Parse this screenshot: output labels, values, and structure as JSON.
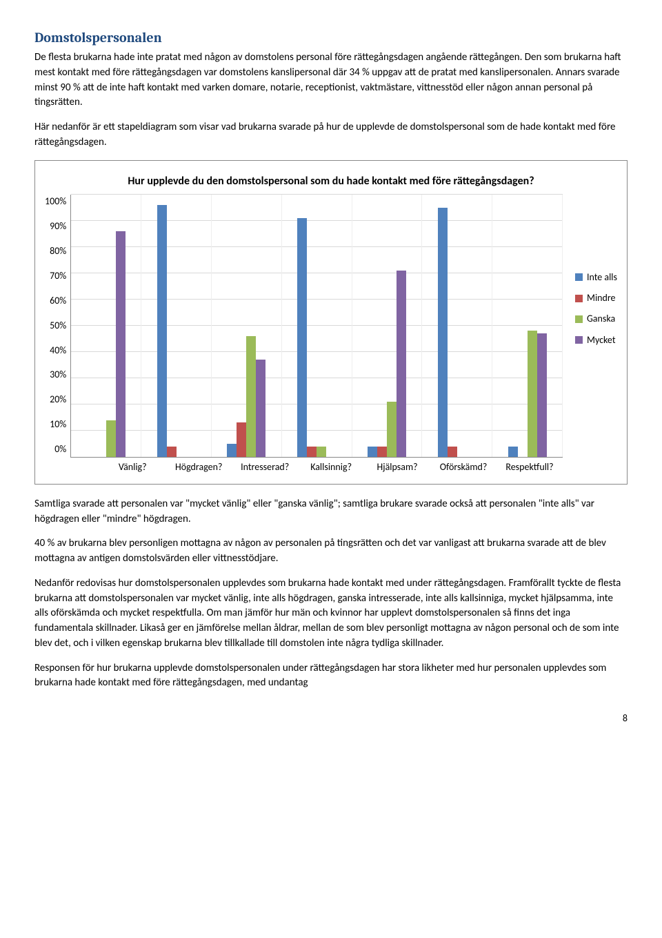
{
  "heading": "Domstolspersonalen",
  "para1": "De flesta brukarna hade inte pratat med någon av domstolens personal före rättegångsdagen angående rättegången. Den som brukarna haft mest kontakt med före rättegångsdagen var domstolens kanslipersonal där 34 % uppgav att de pratat med kanslipersonalen. Annars svarade minst 90 % att de inte haft kontakt med varken domare, notarie, receptionist, vaktmästare, vittnesstöd eller någon annan personal på tingsrätten.",
  "para2": "Här nedanför är ett stapeldiagram som visar vad brukarna svarade på hur de upplevde de domstolspersonal som de hade kontakt med före rättegångsdagen.",
  "chart": {
    "title": "Hur upplevde du den domstolspersonal som du hade kontakt med före rättegångsdagen?",
    "ymax": 100,
    "ytick_step": 10,
    "yticks": [
      "100%",
      "90%",
      "80%",
      "70%",
      "60%",
      "50%",
      "40%",
      "30%",
      "20%",
      "10%",
      "0%"
    ],
    "categories": [
      "Vänlig?",
      "Högdragen?",
      "Intresserad?",
      "Kallsinnig?",
      "Hjälpsam?",
      "Oförskämd?",
      "Respektfull?"
    ],
    "series": [
      {
        "name": "Inte alls",
        "color": "#4f81bd"
      },
      {
        "name": "Mindre",
        "color": "#c0504d"
      },
      {
        "name": "Ganska",
        "color": "#9bbb59"
      },
      {
        "name": "Mycket",
        "color": "#8064a2"
      }
    ],
    "data": {
      "Vänlig?": {
        "Inte alls": 0,
        "Mindre": 0,
        "Ganska": 14,
        "Mycket": 86
      },
      "Högdragen?": {
        "Inte alls": 96,
        "Mindre": 4,
        "Ganska": 0,
        "Mycket": 0
      },
      "Intresserad?": {
        "Inte alls": 5,
        "Mindre": 13,
        "Ganska": 46,
        "Mycket": 37
      },
      "Kallsinnig?": {
        "Inte alls": 91,
        "Mindre": 4,
        "Ganska": 4,
        "Mycket": 0
      },
      "Hjälpsam?": {
        "Inte alls": 4,
        "Mindre": 4,
        "Ganska": 21,
        "Mycket": 71
      },
      "Oförskämd?": {
        "Inte alls": 95,
        "Mindre": 4,
        "Ganska": 0,
        "Mycket": 0
      },
      "Respektfull?": {
        "Inte alls": 4,
        "Mindre": 0,
        "Ganska": 48,
        "Mycket": 47
      }
    }
  },
  "para3": "Samtliga svarade att personalen var \"mycket vänlig\" eller \"ganska vänlig\"; samtliga brukare svarade också att personalen \"inte alls\" var högdragen eller \"mindre\" högdragen.",
  "para4": "40 % av brukarna blev personligen mottagna av någon av personalen på tingsrätten och det var vanligast att brukarna svarade att de blev mottagna av antigen domstolsvärden eller vittnesstödjare.",
  "para5": "Nedanför redovisas hur domstolspersonalen upplevdes som brukarna hade kontakt med under rättegångsdagen. Framförallt tyckte de flesta brukarna att domstolspersonalen var mycket vänlig, inte alls högdragen, ganska intresserade, inte alls kallsinniga, mycket hjälpsamma, inte alls oförskämda och mycket respektfulla. Om man jämför hur män och kvinnor har upplevt domstolspersonalen så finns det inga fundamentala skillnader. Likaså ger en jämförelse mellan åldrar, mellan de som blev personligt mottagna av någon personal och de som inte blev det, och i vilken egenskap brukarna blev tillkallade till domstolen inte några tydliga skillnader.",
  "para6": "Responsen för hur brukarna upplevde domstolspersonalen under rättegångsdagen har stora likheter med hur personalen upplevdes som brukarna hade kontakt med före rättegångsdagen, med undantag",
  "page_number": "8"
}
